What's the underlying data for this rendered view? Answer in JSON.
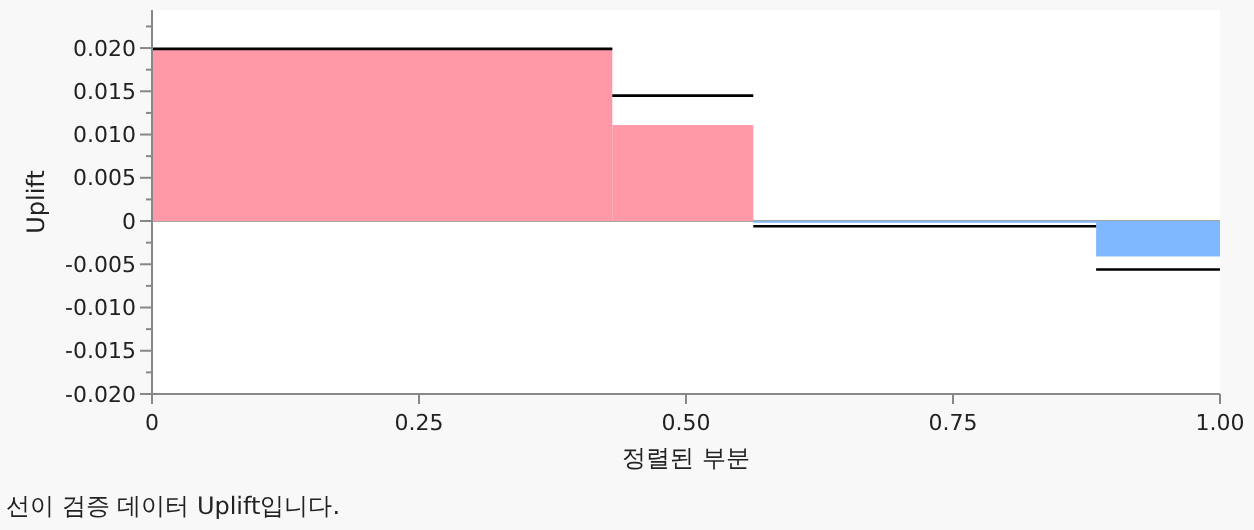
{
  "chart_data": {
    "type": "histogram",
    "xlabel": "정렬된 부분",
    "ylabel": "Uplift",
    "bins": [
      0,
      0.431,
      0.563,
      0.884,
      1
    ],
    "values": [
      0.02,
      0.0111,
      -0.0002,
      -0.0041
    ],
    "colors": [
      "#ff99a8",
      "#ff99a8",
      "#80b8ff",
      "#80b8ff"
    ],
    "series": [
      {
        "type": "step",
        "color": "#000000",
        "x": [
          0,
          0.431,
          0.563,
          0.884,
          1
        ],
        "values": [
          0.0199,
          0.0145,
          -0.0006,
          -0.0056,
          -0.0056
        ]
      }
    ],
    "xlim": [
      0,
      1
    ],
    "xticks": [
      0,
      {
        "value": 0.25,
        "label": "0.25"
      },
      {
        "value": 0.5,
        "label": "0.50"
      },
      {
        "value": 0.75,
        "label": "0.75"
      },
      {
        "value": 1,
        "label": "1.00"
      }
    ],
    "ylim": [
      -0.02,
      0.0244
    ],
    "yticks": [
      {
        "value": -0.02,
        "label": "-0.020"
      },
      {
        "value": -0.0175,
        "label": null
      },
      {
        "value": -0.015,
        "label": "-0.015"
      },
      {
        "value": -0.0125,
        "label": null
      },
      {
        "value": -0.01,
        "label": "-0.010"
      },
      {
        "value": -0.0075,
        "label": null
      },
      {
        "value": -0.005,
        "label": "-0.005"
      },
      {
        "value": -0.0025,
        "label": null
      },
      0,
      {
        "value": 0.0025,
        "label": null
      },
      {
        "value": 0.005,
        "label": "0.005"
      },
      {
        "value": 0.0075,
        "label": null
      },
      {
        "value": 0.01,
        "label": "0.010"
      },
      {
        "value": 0.0125,
        "label": null
      },
      {
        "value": 0.015,
        "label": "0.015"
      },
      {
        "value": 0.0175,
        "label": null
      },
      {
        "value": 0.02,
        "label": "0.020"
      },
      {
        "value": 0.0225,
        "label": null
      }
    ],
    "annotations": [
      "선이 검증 데이터 Uplift입니다."
    ]
  }
}
